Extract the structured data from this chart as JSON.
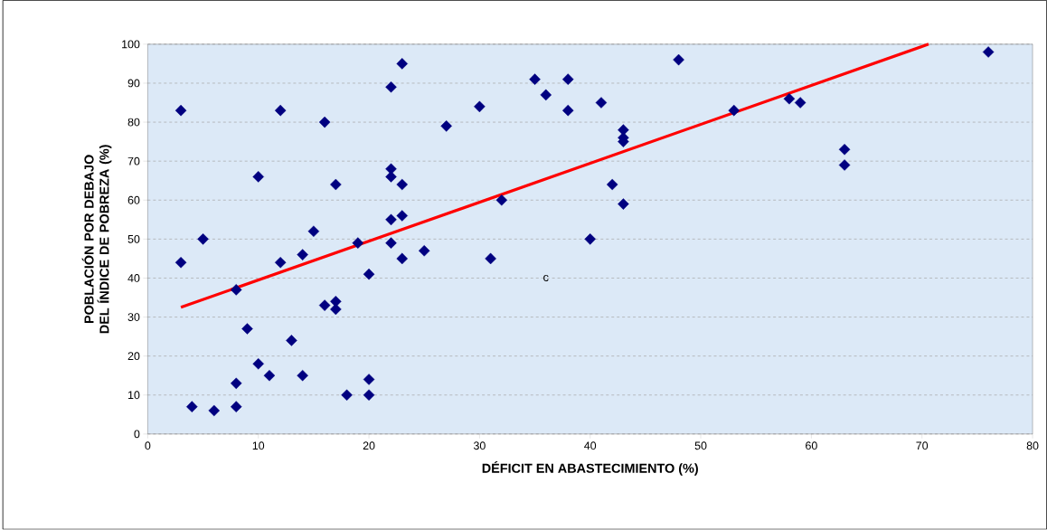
{
  "chart_data": {
    "type": "scatter",
    "xlabel": "DÉFICIT EN ABASTECIMIENTO (%)",
    "ylabel": "POBLACIÓN POR DEBAJO DEL ÍNDICE DE POBREZA (%)",
    "xlim": [
      0,
      80
    ],
    "ylim": [
      0,
      100
    ],
    "xticks": [
      0,
      10,
      20,
      30,
      40,
      50,
      60,
      70,
      80
    ],
    "yticks": [
      0,
      10,
      20,
      30,
      40,
      50,
      60,
      70,
      80,
      90,
      100
    ],
    "grid": "y",
    "marker": "diamond",
    "annotations": [
      "c"
    ],
    "series": [
      {
        "color": "#000080",
        "x": [
          3,
          3,
          4,
          5,
          6,
          8,
          8,
          8,
          9,
          10,
          10,
          11,
          12,
          12,
          13,
          14,
          14,
          15,
          16,
          16,
          17,
          17,
          17,
          18,
          19,
          20,
          20,
          20,
          22,
          22,
          22,
          22,
          22,
          23,
          23,
          23,
          23,
          25,
          27,
          30,
          31,
          32,
          35,
          36,
          38,
          38,
          40,
          41,
          42,
          43,
          43,
          43,
          43,
          48,
          53,
          58,
          59,
          63,
          63,
          76
        ],
        "values": [
          83,
          44,
          7,
          50,
          6,
          37,
          13,
          7,
          27,
          66,
          18,
          15,
          83,
          44,
          24,
          46,
          15,
          52,
          80,
          33,
          64,
          34,
          32,
          10,
          49,
          41,
          14,
          10,
          89,
          68,
          66,
          55,
          49,
          95,
          64,
          56,
          45,
          47,
          79,
          84,
          45,
          60,
          91,
          87,
          91,
          83,
          50,
          85,
          64,
          78,
          76,
          75,
          59,
          96,
          83,
          86,
          85,
          73,
          69,
          98
        ]
      },
      {
        "type": "line",
        "color": "#ff0000",
        "marker": "none",
        "line_style": "solid",
        "x": [
          3,
          70.6
        ],
        "values": [
          32.5,
          100
        ]
      }
    ]
  }
}
